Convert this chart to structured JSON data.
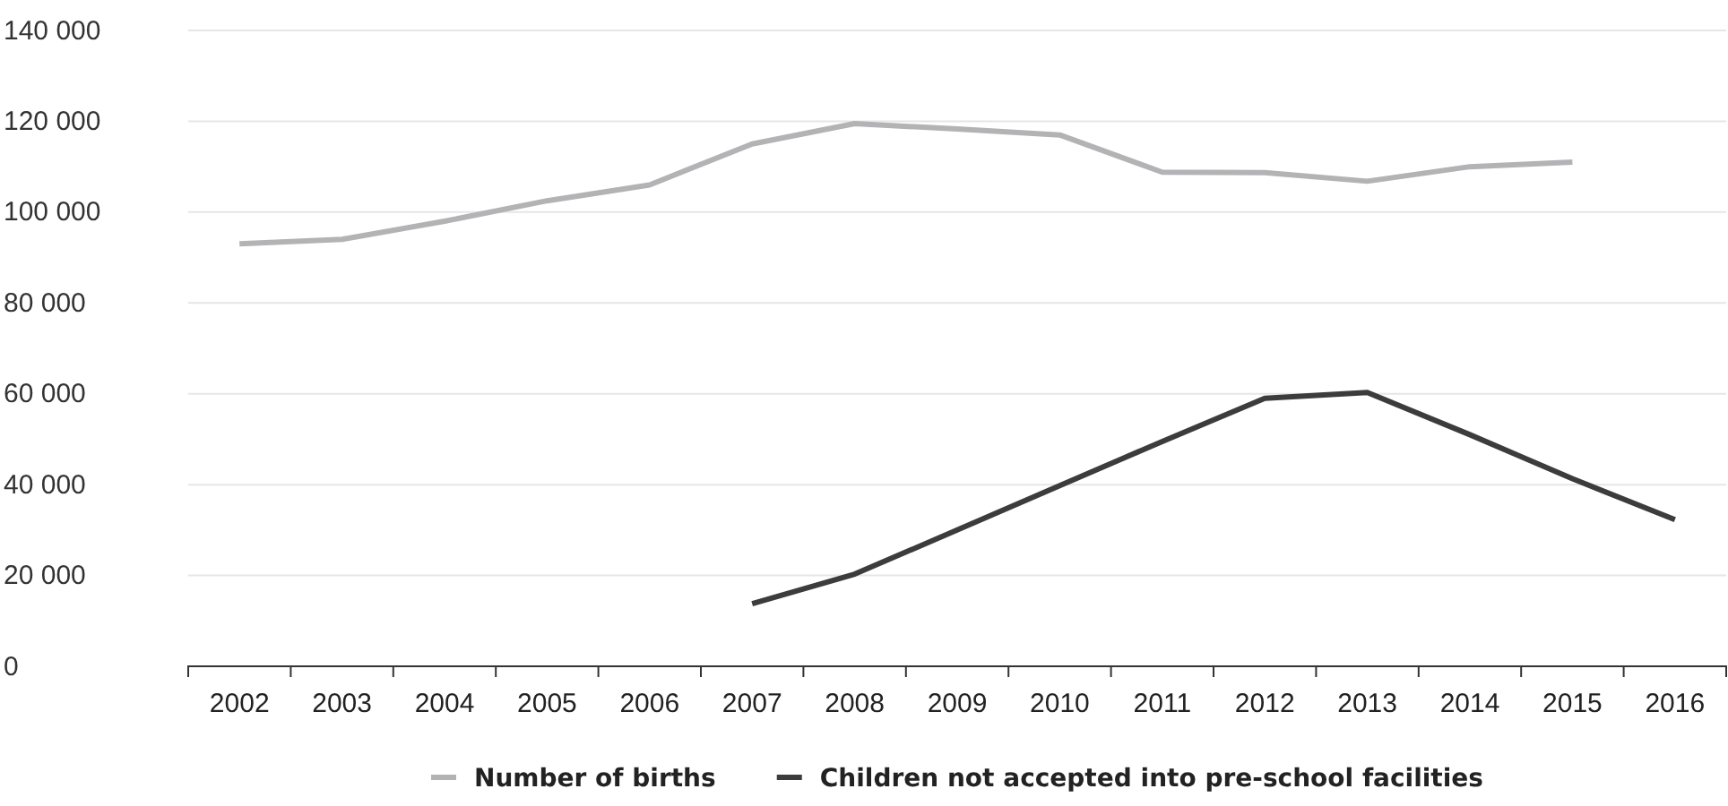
{
  "chart_data": {
    "type": "line",
    "categories": [
      "2002",
      "2003",
      "2004",
      "2005",
      "2006",
      "2007",
      "2008",
      "2009",
      "2010",
      "2011",
      "2012",
      "2013",
      "2014",
      "2015",
      "2016"
    ],
    "series": [
      {
        "name": "Number of births",
        "color": "#b3b3b5",
        "values": [
          93000,
          94000,
          98000,
          102500,
          106000,
          115000,
          119500,
          118300,
          117000,
          108800,
          108700,
          106800,
          110000,
          111000,
          null
        ]
      },
      {
        "name": "Children not accepted into pre-school facilities",
        "color": "#3c3c3c",
        "values": [
          null,
          null,
          null,
          null,
          null,
          13800,
          20300,
          30000,
          39800,
          49500,
          59000,
          60300,
          51000,
          41300,
          32300
        ]
      }
    ],
    "ylim": [
      0,
      140000
    ],
    "yticks": [
      {
        "value": 0,
        "label": "0"
      },
      {
        "value": 20000,
        "label": "20 000"
      },
      {
        "value": 40000,
        "label": "40 000"
      },
      {
        "value": 60000,
        "label": "60 000"
      },
      {
        "value": 80000,
        "label": "80 000"
      },
      {
        "value": 100000,
        "label": "100 000"
      },
      {
        "value": 120000,
        "label": "120 000"
      },
      {
        "value": 140000,
        "label": "140 000"
      }
    ],
    "grid": "y",
    "legend": "bottom",
    "marker": "none",
    "line_style": "solid"
  }
}
